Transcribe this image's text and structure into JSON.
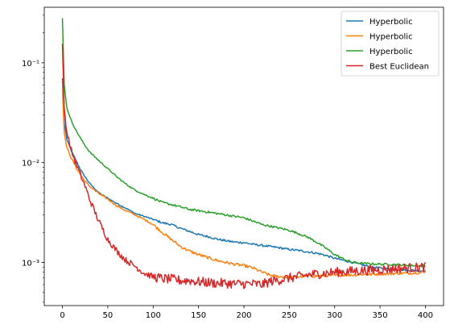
{
  "chart_data": {
    "type": "line",
    "title": "",
    "xlabel": "",
    "ylabel": "",
    "xlim": [
      -20,
      420
    ],
    "ylim": [
      0.00037,
      0.36
    ],
    "yscale": "log",
    "grid": false,
    "legend_position": "top-right",
    "x_ticks": [
      0,
      50,
      100,
      150,
      200,
      250,
      300,
      350,
      400
    ],
    "x_tick_labels": [
      "0",
      "50",
      "100",
      "150",
      "200",
      "250",
      "300",
      "350",
      "400"
    ],
    "y_ticks": [
      0.001,
      0.01,
      0.1
    ],
    "y_tick_labels": [
      "10⁻³",
      "10⁻²",
      "10⁻¹"
    ],
    "series": [
      {
        "name": "Hyperbolic",
        "color": "#1f77b4",
        "x": [
          0,
          2,
          5,
          10,
          15,
          20,
          25,
          30,
          40,
          50,
          60,
          70,
          80,
          90,
          100,
          110,
          120,
          130,
          140,
          150,
          160,
          170,
          180,
          190,
          200,
          210,
          220,
          230,
          240,
          250,
          260,
          270,
          280,
          290,
          300,
          310,
          320,
          330,
          340,
          350,
          360,
          370,
          380,
          390,
          400
        ],
        "values": [
          0.07,
          0.025,
          0.017,
          0.013,
          0.0105,
          0.0085,
          0.0072,
          0.0062,
          0.005,
          0.0044,
          0.0039,
          0.0035,
          0.0031,
          0.0029,
          0.0027,
          0.0025,
          0.0024,
          0.0022,
          0.00205,
          0.0019,
          0.00182,
          0.00172,
          0.00165,
          0.0016,
          0.00158,
          0.00152,
          0.00148,
          0.00144,
          0.0014,
          0.00135,
          0.00132,
          0.00128,
          0.00124,
          0.00118,
          0.0011,
          0.00105,
          0.001,
          0.00095,
          0.0009,
          0.00088,
          0.00086,
          0.00085,
          0.00084,
          0.00083,
          0.00082
        ]
      },
      {
        "name": "Hyperbolic",
        "color": "#ff7f0e",
        "x": [
          0,
          2,
          5,
          10,
          15,
          20,
          25,
          30,
          40,
          50,
          60,
          70,
          80,
          90,
          100,
          110,
          120,
          130,
          140,
          150,
          160,
          170,
          180,
          190,
          200,
          210,
          220,
          230,
          240,
          250,
          260,
          270,
          280,
          290,
          300,
          310,
          320,
          330,
          340,
          350,
          360,
          370,
          380,
          390,
          400
        ],
        "values": [
          0.055,
          0.02,
          0.014,
          0.011,
          0.009,
          0.0075,
          0.0065,
          0.0058,
          0.0049,
          0.0043,
          0.0037,
          0.0033,
          0.003,
          0.0027,
          0.0024,
          0.002,
          0.0017,
          0.00145,
          0.0013,
          0.0012,
          0.00112,
          0.00105,
          0.001,
          0.00096,
          0.00093,
          0.00088,
          0.0008,
          0.00074,
          0.00072,
          0.00071,
          0.00072,
          0.00073,
          0.00073,
          0.00074,
          0.00074,
          0.00075,
          0.00075,
          0.00076,
          0.00076,
          0.00077,
          0.00077,
          0.00078,
          0.00078,
          0.00079,
          0.0008
        ]
      },
      {
        "name": "Hyperbolic",
        "color": "#2ca02c",
        "x": [
          0,
          2,
          5,
          10,
          15,
          20,
          25,
          30,
          40,
          50,
          60,
          70,
          80,
          90,
          100,
          110,
          120,
          130,
          140,
          150,
          160,
          170,
          180,
          190,
          200,
          210,
          220,
          230,
          240,
          250,
          260,
          270,
          280,
          290,
          300,
          310,
          320,
          330,
          340,
          350,
          360,
          370,
          380,
          390,
          400
        ],
        "values": [
          0.28,
          0.06,
          0.035,
          0.026,
          0.021,
          0.0175,
          0.0148,
          0.0128,
          0.0105,
          0.0087,
          0.0072,
          0.0061,
          0.0053,
          0.0048,
          0.0044,
          0.004,
          0.0038,
          0.0036,
          0.0034,
          0.0033,
          0.0032,
          0.0031,
          0.003,
          0.0029,
          0.0028,
          0.0026,
          0.0024,
          0.0023,
          0.0022,
          0.0021,
          0.00195,
          0.0018,
          0.0016,
          0.0014,
          0.0012,
          0.00108,
          0.001,
          0.00098,
          0.00097,
          0.00096,
          0.00096,
          0.00095,
          0.00094,
          0.00093,
          0.00092
        ]
      },
      {
        "name": "Best Euclidean",
        "color": "#d62728",
        "x": [
          0,
          2,
          5,
          10,
          15,
          20,
          25,
          30,
          40,
          50,
          60,
          70,
          80,
          90,
          100,
          110,
          120,
          130,
          140,
          150,
          160,
          170,
          180,
          190,
          200,
          210,
          220,
          230,
          240,
          250,
          260,
          270,
          280,
          290,
          300,
          310,
          320,
          330,
          340,
          350,
          360,
          370,
          380,
          390,
          400
        ],
        "values": [
          0.155,
          0.035,
          0.02,
          0.013,
          0.0098,
          0.0075,
          0.0058,
          0.0043,
          0.0026,
          0.0017,
          0.0013,
          0.00105,
          0.00092,
          0.00078,
          0.00072,
          0.00069,
          0.00068,
          0.00066,
          0.00066,
          0.00064,
          0.00063,
          0.00062,
          0.00062,
          0.00061,
          0.00061,
          0.00061,
          0.0006,
          0.00065,
          0.00067,
          0.0007,
          0.00072,
          0.00075,
          0.00077,
          0.00078,
          0.0008,
          0.00081,
          0.00082,
          0.00083,
          0.00084,
          0.00085,
          0.00086,
          0.00087,
          0.00088,
          0.00089,
          0.0009
        ]
      }
    ]
  }
}
